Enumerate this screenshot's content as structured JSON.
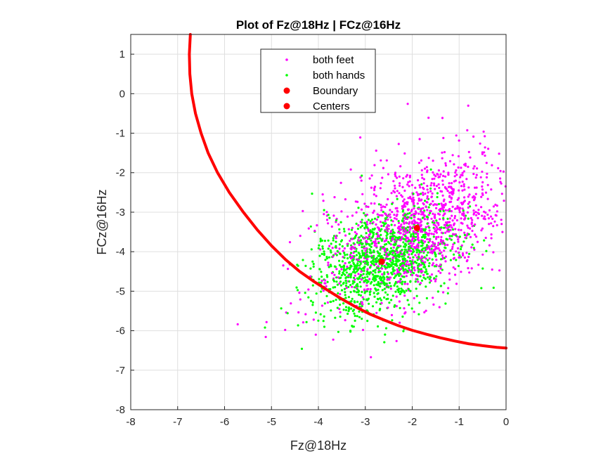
{
  "chart_data": {
    "type": "scatter",
    "title": "Plot of Fz@18Hz | FCz@16Hz",
    "xlabel": "Fz@18Hz",
    "ylabel": "FCz@16Hz",
    "xlim": [
      -8,
      0
    ],
    "ylim": [
      -8,
      1.5
    ],
    "xticks": [
      "-8",
      "-7",
      "-6",
      "-5",
      "-4",
      "-3",
      "-2",
      "-1",
      "0"
    ],
    "yticks": [
      "-8",
      "-7",
      "-6",
      "-5",
      "-4",
      "-3",
      "-2",
      "-1",
      "0",
      "1"
    ],
    "grid": true,
    "legend_position": "top-center",
    "series": [
      {
        "name": "both feet",
        "color": "#ff00ff",
        "marker": "dot",
        "cluster": {
          "mean": [
            -1.9,
            -3.4
          ],
          "std": [
            0.95,
            0.95
          ],
          "count": 1200,
          "corr": 0.45
        }
      },
      {
        "name": "both hands",
        "color": "#00ff00",
        "marker": "dot",
        "cluster": {
          "mean": [
            -2.65,
            -4.25
          ],
          "std": [
            0.75,
            0.65
          ],
          "count": 1150,
          "corr": 0.35
        }
      },
      {
        "name": "Boundary",
        "color": "#ff0000",
        "marker": "line",
        "x": [
          -6.73,
          -6.75,
          -6.74,
          -6.7,
          -6.62,
          -6.5,
          -6.35,
          -6.15,
          -5.9,
          -5.6,
          -5.3,
          -5.0,
          -4.7,
          -4.4,
          -4.1,
          -3.8,
          -3.5,
          -3.2,
          -2.9,
          -2.6,
          -2.3,
          -2.0,
          -1.7,
          -1.4,
          -1.1,
          -0.8,
          -0.5,
          -0.2,
          0.0
        ],
        "y": [
          1.5,
          1.0,
          0.5,
          0.0,
          -0.5,
          -1.0,
          -1.5,
          -2.0,
          -2.5,
          -3.0,
          -3.45,
          -3.85,
          -4.2,
          -4.5,
          -4.75,
          -4.98,
          -5.2,
          -5.4,
          -5.58,
          -5.73,
          -5.87,
          -5.99,
          -6.09,
          -6.18,
          -6.26,
          -6.33,
          -6.38,
          -6.42,
          -6.44
        ]
      },
      {
        "name": "Centers",
        "color": "#ff0000",
        "marker": "circle",
        "x": [
          -1.9,
          -2.65
        ],
        "y": [
          -3.4,
          -4.25
        ]
      }
    ]
  }
}
